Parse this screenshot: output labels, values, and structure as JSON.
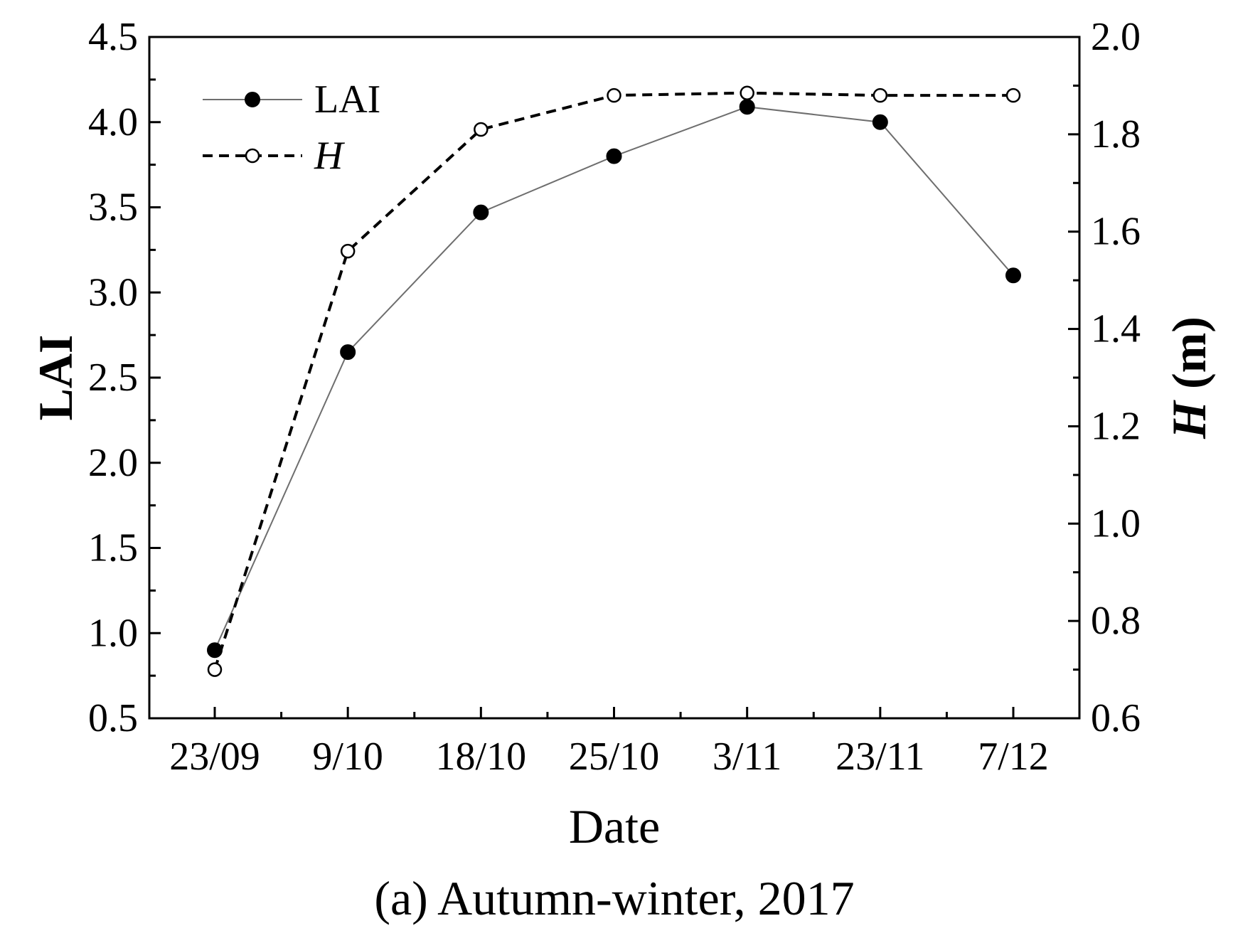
{
  "chart_data": {
    "type": "line",
    "categories": [
      "23/09",
      "9/10",
      "18/10",
      "25/10",
      "3/11",
      "23/11",
      "7/12"
    ],
    "series": [
      {
        "name": "LAI",
        "axis": "left",
        "values": [
          0.9,
          2.65,
          3.47,
          3.8,
          4.09,
          4.0,
          3.1
        ],
        "line_style": "solid",
        "line_color": "#6e6e6e",
        "marker": "filled-circle",
        "marker_color": "#000000"
      },
      {
        "name": "H",
        "axis": "right",
        "values": [
          0.7,
          1.56,
          1.81,
          1.88,
          1.885,
          1.88,
          1.88
        ],
        "line_style": "dashed",
        "line_color": "#000000",
        "marker": "open-circle",
        "marker_color": "#000000"
      }
    ],
    "xlabel": "Date",
    "ylabel": "LAI",
    "y2label_italic": "H",
    "y2label_rest": " (m)",
    "ylim": [
      0.5,
      4.5
    ],
    "y2lim": [
      0.6,
      2.0
    ],
    "yticks": [
      "0.5",
      "1.0",
      "1.5",
      "2.0",
      "2.5",
      "3.0",
      "3.5",
      "4.0",
      "4.5"
    ],
    "y2ticks": [
      "0.6",
      "0.8",
      "1.0",
      "1.2",
      "1.4",
      "1.6",
      "1.8",
      "2.0"
    ],
    "caption": "(a) Autumn-winter, 2017",
    "legend_position": "top-left",
    "grid": false
  }
}
